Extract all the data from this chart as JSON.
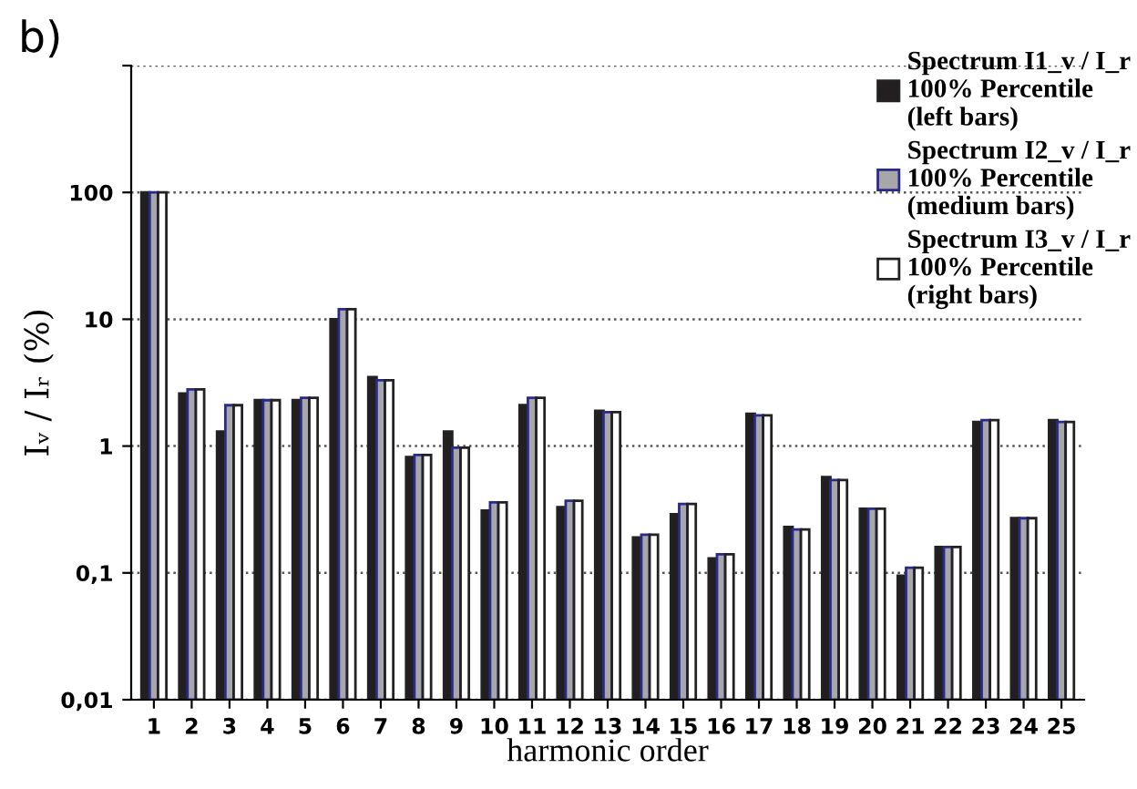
{
  "chart_data": {
    "type": "bar",
    "xlabel": "harmonic order",
    "ylabel": "Iᵥ / Iᵣ (%)",
    "annotations": [
      "b)"
    ],
    "categories": [
      "1",
      "2",
      "3",
      "4",
      "5",
      "6",
      "7",
      "8",
      "9",
      "10",
      "11",
      "12",
      "13",
      "14",
      "15",
      "16",
      "17",
      "18",
      "19",
      "20",
      "21",
      "22",
      "23",
      "24",
      "25"
    ],
    "series": [
      {
        "name": "Spectrum I1_v / I_r\n100% Percentile\n(left bars)",
        "color": "#231f20",
        "values": [
          100,
          2.6,
          1.3,
          2.3,
          2.3,
          10,
          3.5,
          0.82,
          1.3,
          0.31,
          2.1,
          0.33,
          1.9,
          0.19,
          0.29,
          0.13,
          1.8,
          0.23,
          0.57,
          0.32,
          0.095,
          0.16,
          1.55,
          0.27,
          1.6
        ]
      },
      {
        "name": "Spectrum I2_v / I_r\n100% Percentile\n(medium bars)",
        "color": "#a7a7aa",
        "values": [
          100,
          2.8,
          2.1,
          2.3,
          2.4,
          12,
          3.3,
          0.85,
          0.97,
          0.36,
          2.4,
          0.37,
          1.85,
          0.2,
          0.35,
          0.14,
          1.75,
          0.22,
          0.54,
          0.32,
          0.11,
          0.16,
          1.6,
          0.27,
          1.55
        ]
      },
      {
        "name": "Spectrum I3_v / I_r\n100% Percentile\n(right bars)",
        "color": "#ffffff",
        "values": [
          100,
          2.8,
          2.1,
          2.3,
          2.4,
          12,
          3.3,
          0.85,
          0.97,
          0.36,
          2.4,
          0.37,
          1.85,
          0.2,
          0.35,
          0.14,
          1.75,
          0.22,
          0.54,
          0.32,
          0.11,
          0.16,
          1.6,
          0.27,
          1.55
        ]
      }
    ],
    "log": true,
    "ylim": [
      0.01,
      1000
    ],
    "yticks": [
      {
        "value": 0.01,
        "label": "0,01"
      },
      {
        "value": 0.1,
        "label": "0,1"
      },
      1,
      10,
      100,
      {
        "value": 1000,
        "label": null
      }
    ],
    "grid": "y",
    "legend": "top right"
  }
}
